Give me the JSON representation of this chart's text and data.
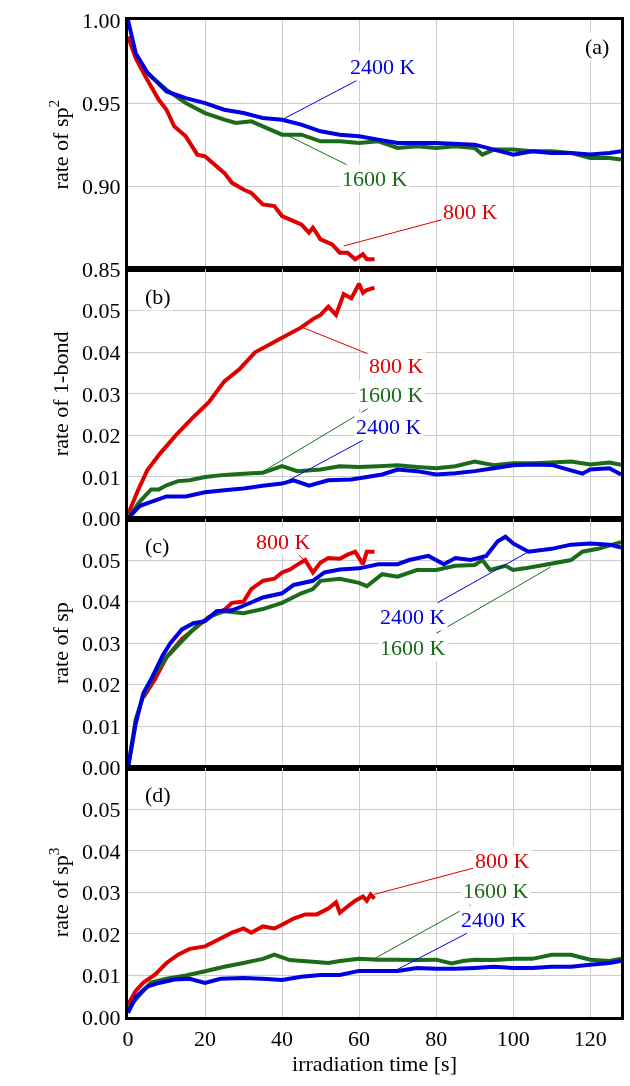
{
  "chart_data": [
    {
      "type": "line",
      "ylabel": "rate of sp$^{2}$",
      "xlim": [
        0,
        128
      ],
      "xticks": [
        0,
        20,
        40,
        60,
        80,
        100,
        120
      ],
      "ylim": [
        0.85,
        1.0
      ],
      "yticks": [
        {
          "value": 0.85,
          "label": "0.85"
        },
        {
          "value": 0.9,
          "label": "0.90"
        },
        {
          "value": 0.95,
          "label": "0.95"
        },
        {
          "value": 1.0,
          "label": "1.00"
        }
      ],
      "grid": true,
      "tick_labels": "y",
      "series": [
        {
          "color": "#e00000",
          "x": [
            0,
            2,
            5,
            8,
            10,
            12,
            15,
            18,
            20,
            22,
            25,
            27,
            30,
            32,
            35,
            38,
            40,
            43,
            45,
            47,
            48,
            50,
            53,
            55,
            57,
            59,
            61,
            62,
            64
          ],
          "values": [
            0.99,
            0.977,
            0.964,
            0.952,
            0.946,
            0.936,
            0.93,
            0.919,
            0.918,
            0.914,
            0.908,
            0.902,
            0.898,
            0.896,
            0.889,
            0.888,
            0.882,
            0.879,
            0.877,
            0.872,
            0.875,
            0.868,
            0.865,
            0.86,
            0.86,
            0.856,
            0.859,
            0.856,
            0.856
          ]
        },
        {
          "color": "#1a6b1a",
          "x": [
            5,
            10,
            15,
            20,
            25,
            28,
            32,
            35,
            40,
            45,
            50,
            55,
            60,
            65,
            70,
            75,
            80,
            85,
            90,
            92,
            95,
            100,
            105,
            110,
            115,
            120,
            125,
            128
          ],
          "values": [
            0.968,
            0.958,
            0.95,
            0.944,
            0.94,
            0.938,
            0.939,
            0.936,
            0.931,
            0.931,
            0.927,
            0.927,
            0.926,
            0.927,
            0.923,
            0.924,
            0.923,
            0.924,
            0.923,
            0.919,
            0.922,
            0.922,
            0.921,
            0.921,
            0.92,
            0.917,
            0.917,
            0.916
          ]
        },
        {
          "color": "#0000e0",
          "x": [
            0,
            2,
            5,
            10,
            15,
            20,
            25,
            30,
            35,
            40,
            45,
            50,
            55,
            60,
            65,
            70,
            80,
            90,
            95,
            100,
            105,
            110,
            115,
            120,
            125,
            128
          ],
          "values": [
            1.0,
            0.98,
            0.9685,
            0.957,
            0.953,
            0.95,
            0.946,
            0.944,
            0.941,
            0.94,
            0.937,
            0.933,
            0.931,
            0.93,
            0.928,
            0.926,
            0.926,
            0.925,
            0.922,
            0.919,
            0.921,
            0.92,
            0.92,
            0.919,
            0.92,
            0.921
          ]
        }
      ],
      "annotations": [
        "(a)",
        {
          "text": "800 K",
          "x": 56,
          "y": 0.864
        },
        {
          "text": "1600 K",
          "x": 41,
          "y": 0.931
        },
        {
          "text": "2400 K",
          "x": 40,
          "y": 0.94
        }
      ]
    },
    {
      "type": "line",
      "ylabel": "rate of 1-bond",
      "xlim": [
        0,
        128
      ],
      "xticks": [
        0,
        20,
        40,
        60,
        80,
        100,
        120
      ],
      "ylim": [
        0,
        0.06
      ],
      "yticks": [
        {
          "value": 0,
          "label": "0.00"
        },
        {
          "value": 0.01,
          "label": "0.01"
        },
        {
          "value": 0.02,
          "label": "0.02"
        },
        {
          "value": 0.03,
          "label": "0.03"
        },
        {
          "value": 0.04,
          "label": "0.04"
        },
        {
          "value": 0.05,
          "label": "0.05"
        }
      ],
      "grid": true,
      "tick_labels": "y",
      "series": [
        {
          "color": "#e00000",
          "x": [
            0,
            2.6,
            5,
            8.2,
            12.4,
            16.5,
            21,
            25,
            29,
            33,
            40,
            45,
            48,
            50,
            52,
            54,
            56,
            58,
            60,
            61,
            62,
            64
          ],
          "values": [
            0.001,
            0.0068,
            0.0116,
            0.0155,
            0.02,
            0.024,
            0.028,
            0.033,
            0.036,
            0.04,
            0.0435,
            0.046,
            0.048,
            0.049,
            0.051,
            0.049,
            0.054,
            0.053,
            0.0565,
            0.0543,
            0.055,
            0.0556
          ]
        },
        {
          "color": "#1a6b1a",
          "x": [
            0,
            3,
            6,
            8,
            10,
            13,
            16,
            20,
            25,
            30,
            35,
            40,
            44,
            50,
            55,
            60,
            65,
            70,
            75,
            80,
            85,
            90,
            95,
            100,
            105,
            110,
            115,
            120,
            125,
            128
          ],
          "values": [
            0,
            0.004,
            0.007,
            0.007,
            0.008,
            0.009,
            0.0092,
            0.01,
            0.0105,
            0.0108,
            0.011,
            0.0126,
            0.0114,
            0.0118,
            0.0126,
            0.0124,
            0.0126,
            0.0128,
            0.0124,
            0.0121,
            0.0126,
            0.0137,
            0.0128,
            0.0133,
            0.0133,
            0.0135,
            0.0137,
            0.013,
            0.0135,
            0.0129
          ]
        },
        {
          "color": "#0000e0",
          "x": [
            0,
            3,
            6,
            10,
            15,
            20,
            25,
            30,
            35,
            40,
            43,
            47,
            52,
            58,
            62,
            66,
            70,
            75,
            80,
            85,
            90,
            95,
            100,
            105,
            110,
            115,
            118,
            120,
            125,
            128
          ],
          "values": [
            0,
            0.003,
            0.004,
            0.0053,
            0.0053,
            0.0063,
            0.0068,
            0.0072,
            0.0079,
            0.0084,
            0.0092,
            0.0079,
            0.0092,
            0.0094,
            0.01,
            0.0106,
            0.0118,
            0.0114,
            0.0106,
            0.0109,
            0.0114,
            0.0121,
            0.0128,
            0.013,
            0.0129,
            0.0116,
            0.0108,
            0.0118,
            0.0121,
            0.0106
          ]
        }
      ],
      "annotations": [
        "(b)",
        {
          "text": "800 K",
          "x": 45.3,
          "y": 0.046
        },
        {
          "text": "1600 K",
          "x": 34.5,
          "y": 0.011
        },
        {
          "text": "2400 K",
          "x": 40.7,
          "y": 0.0087
        }
      ]
    },
    {
      "type": "line",
      "ylabel": "rate of sp",
      "xlim": [
        0,
        128
      ],
      "xticks": [
        0,
        20,
        40,
        60,
        80,
        100,
        120
      ],
      "ylim": [
        0,
        0.06
      ],
      "yticks": [
        {
          "value": 0,
          "label": "0.00"
        },
        {
          "value": 0.01,
          "label": "0.01"
        },
        {
          "value": 0.02,
          "label": "0.02"
        },
        {
          "value": 0.03,
          "label": "0.03"
        },
        {
          "value": 0.04,
          "label": "0.04"
        },
        {
          "value": 0.05,
          "label": "0.05"
        }
      ],
      "grid": true,
      "tick_labels": "y",
      "series": [
        {
          "color": "#e00000",
          "x": [
            4,
            7,
            10,
            14,
            18,
            21,
            25,
            27,
            30,
            32,
            35,
            38,
            40,
            42,
            44,
            46,
            48,
            50,
            52,
            55,
            57,
            59,
            61,
            62,
            64
          ],
          "values": [
            0.0169,
            0.0213,
            0.0266,
            0.031,
            0.034,
            0.0363,
            0.038,
            0.0397,
            0.04,
            0.043,
            0.045,
            0.0455,
            0.047,
            0.0477,
            0.0489,
            0.05,
            0.047,
            0.0494,
            0.0505,
            0.0503,
            0.0513,
            0.052,
            0.049,
            0.052,
            0.052
          ]
        },
        {
          "color": "#1a6b1a",
          "x": [
            0,
            2,
            4,
            7,
            10,
            14,
            18,
            22,
            25,
            30,
            35,
            40,
            45,
            48,
            50,
            55,
            60,
            62,
            66,
            70,
            75,
            80,
            85,
            90,
            92,
            94,
            98,
            100,
            103,
            108,
            115,
            118,
            122,
            128
          ],
          "values": [
            0,
            0.0116,
            0.0174,
            0.0227,
            0.0266,
            0.0305,
            0.0343,
            0.0367,
            0.0377,
            0.0372,
            0.0382,
            0.0397,
            0.042,
            0.043,
            0.045,
            0.0455,
            0.0445,
            0.0437,
            0.0466,
            0.046,
            0.0476,
            0.0476,
            0.0486,
            0.0488,
            0.05,
            0.0476,
            0.0486,
            0.0476,
            0.048,
            0.0488,
            0.05,
            0.052,
            0.0527,
            0.0543
          ]
        },
        {
          "color": "#0000e0",
          "x": [
            0,
            2,
            4,
            6,
            9,
            11,
            14,
            17,
            20,
            23,
            27,
            30,
            35,
            40,
            43,
            48,
            51,
            55,
            60,
            65,
            70,
            73,
            78,
            82,
            85,
            89,
            93,
            96,
            98,
            100,
            104,
            110,
            115,
            120,
            125,
            128
          ],
          "values": [
            0,
            0.0106,
            0.018,
            0.0213,
            0.027,
            0.03,
            0.0333,
            0.0348,
            0.0353,
            0.0377,
            0.0379,
            0.039,
            0.041,
            0.042,
            0.044,
            0.045,
            0.047,
            0.0477,
            0.048,
            0.049,
            0.049,
            0.05,
            0.051,
            0.049,
            0.0505,
            0.05,
            0.051,
            0.0545,
            0.0556,
            0.054,
            0.052,
            0.0527,
            0.0537,
            0.054,
            0.0537,
            0.053
          ]
        }
      ],
      "annotations": [
        "(c)",
        {
          "text": "800 K",
          "x": 47,
          "y": 0.049
        },
        {
          "text": "1600 K",
          "x": 109.7,
          "y": 0.0483
        },
        {
          "text": "2400 K",
          "x": 104,
          "y": 0.052
        }
      ]
    },
    {
      "type": "line",
      "ylabel": "rate of sp$^{3}$",
      "xlabel": "irradiation time [s]",
      "xlim": [
        0,
        128
      ],
      "xticks": [
        0,
        20,
        40,
        60,
        80,
        100,
        120
      ],
      "ylim": [
        0,
        0.06
      ],
      "yticks": [
        {
          "value": 0,
          "label": "0.00"
        },
        {
          "value": 0.01,
          "label": "0.01"
        },
        {
          "value": 0.02,
          "label": "0.02"
        },
        {
          "value": 0.03,
          "label": "0.03"
        },
        {
          "value": 0.04,
          "label": "0.04"
        },
        {
          "value": 0.05,
          "label": "0.05"
        }
      ],
      "grid": true,
      "series": [
        {
          "color": "#e00000",
          "x": [
            0,
            2,
            4,
            7,
            10,
            13,
            16,
            20,
            23,
            27,
            30,
            32,
            35,
            38,
            40,
            43,
            46,
            49,
            52,
            54,
            55,
            57,
            59,
            61,
            62,
            63,
            64
          ],
          "values": [
            0.003,
            0.0063,
            0.0083,
            0.0102,
            0.013,
            0.015,
            0.0164,
            0.017,
            0.0184,
            0.0203,
            0.0213,
            0.0203,
            0.0218,
            0.0213,
            0.0222,
            0.0237,
            0.0247,
            0.0247,
            0.0261,
            0.0276,
            0.0251,
            0.0266,
            0.028,
            0.029,
            0.028,
            0.0295,
            0.0285
          ]
        },
        {
          "color": "#1a6b1a",
          "x": [
            0,
            3,
            6,
            10,
            15,
            20,
            25,
            30,
            35,
            38,
            42,
            48,
            52,
            55,
            60,
            65,
            70,
            75,
            80,
            84,
            87,
            90,
            95,
            100,
            105,
            110,
            115,
            120,
            125,
            128
          ],
          "values": [
            0.002,
            0.0053,
            0.0083,
            0.0092,
            0.01,
            0.011,
            0.0121,
            0.013,
            0.014,
            0.015,
            0.0137,
            0.0133,
            0.013,
            0.0135,
            0.014,
            0.0138,
            0.0138,
            0.0137,
            0.0138,
            0.0129,
            0.0135,
            0.0138,
            0.0137,
            0.014,
            0.014,
            0.015,
            0.015,
            0.0138,
            0.0135,
            0.014
          ]
        },
        {
          "color": "#0000e0",
          "x": [
            0,
            2,
            5,
            8,
            12,
            16,
            20,
            24,
            30,
            35,
            40,
            45,
            50,
            55,
            60,
            65,
            70,
            75,
            80,
            85,
            90,
            95,
            100,
            105,
            110,
            115,
            120,
            125,
            128
          ],
          "values": [
            0.001,
            0.0048,
            0.0073,
            0.0082,
            0.009,
            0.0092,
            0.0082,
            0.0092,
            0.0094,
            0.0092,
            0.0089,
            0.0097,
            0.0101,
            0.0101,
            0.0111,
            0.0111,
            0.0111,
            0.0118,
            0.0116,
            0.0116,
            0.0118,
            0.0121,
            0.0118,
            0.0118,
            0.0121,
            0.0121,
            0.0126,
            0.013,
            0.0135
          ]
        }
      ],
      "annotations": [
        "(d)",
        {
          "text": "800 K",
          "x": 63.9,
          "y": 0.0295
        },
        {
          "text": "1600 K",
          "x": 63.9,
          "y": 0.014
        },
        {
          "text": "2400 K",
          "x": 69,
          "y": 0.011
        }
      ]
    }
  ]
}
